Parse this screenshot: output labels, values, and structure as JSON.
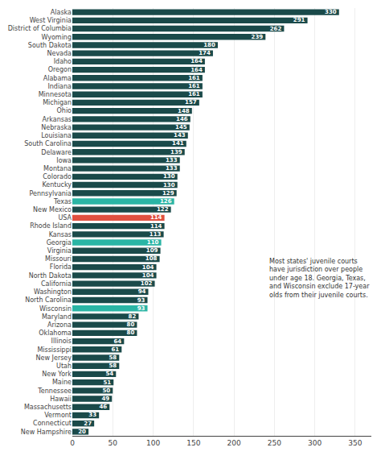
{
  "chart_data": {
    "type": "bar",
    "orientation": "horizontal",
    "categories": [
      "Alaska",
      "West Virginia",
      "District of Columbia",
      "Wyoming",
      "South Dakota",
      "Nevada",
      "Idaho",
      "Oregon",
      "Alabama",
      "Indiana",
      "Minnesota",
      "Michigan",
      "Ohio",
      "Arkansas",
      "Nebraska",
      "Louisiana",
      "South Carolina",
      "Delaware",
      "Iowa",
      "Montana",
      "Colorado",
      "Kentucky",
      "Pennsylvania",
      "Texas",
      "New Mexico",
      "USA",
      "Rhode Island",
      "Kansas",
      "Georgia",
      "Virginia",
      "Missouri",
      "Florida",
      "North Dakota",
      "California",
      "Washington",
      "North Carolina",
      "Wisconsin",
      "Maryland",
      "Arizona",
      "Oklahoma",
      "Illinois",
      "Mississippi",
      "New Jersey",
      "Utah",
      "New York",
      "Maine",
      "Tennessee",
      "Hawaii",
      "Massachusetts",
      "Vermont",
      "Connecticut",
      "New Hampshire"
    ],
    "values": [
      330,
      291,
      262,
      239,
      180,
      174,
      164,
      164,
      161,
      161,
      161,
      157,
      148,
      146,
      145,
      143,
      141,
      139,
      133,
      133,
      130,
      130,
      129,
      126,
      122,
      114,
      114,
      113,
      110,
      109,
      108,
      104,
      104,
      102,
      94,
      93,
      93,
      82,
      80,
      80,
      64,
      61,
      58,
      58,
      54,
      51,
      50,
      49,
      46,
      33,
      27,
      20
    ],
    "colors": [
      "#1a4a4a",
      "#1a4a4a",
      "#1a4a4a",
      "#1a4a4a",
      "#1a4a4a",
      "#1a4a4a",
      "#1a4a4a",
      "#1a4a4a",
      "#1a4a4a",
      "#1a4a4a",
      "#1a4a4a",
      "#1a4a4a",
      "#1a4a4a",
      "#1a4a4a",
      "#1a4a4a",
      "#1a4a4a",
      "#1a4a4a",
      "#1a4a4a",
      "#1a4a4a",
      "#1a4a4a",
      "#1a4a4a",
      "#1a4a4a",
      "#1a4a4a",
      "#2ab5a5",
      "#1a4a4a",
      "#e05040",
      "#1a4a4a",
      "#1a4a4a",
      "#2ab5a5",
      "#1a4a4a",
      "#1a4a4a",
      "#1a4a4a",
      "#1a4a4a",
      "#1a4a4a",
      "#1a4a4a",
      "#1a4a4a",
      "#2ab5a5",
      "#1a4a4a",
      "#1a4a4a",
      "#1a4a4a",
      "#1a4a4a",
      "#1a4a4a",
      "#1a4a4a",
      "#1a4a4a",
      "#1a4a4a",
      "#1a4a4a",
      "#1a4a4a",
      "#1a4a4a",
      "#1a4a4a",
      "#1a4a4a",
      "#1a4a4a",
      "#1a4a4a"
    ],
    "xlim": [
      0,
      370
    ],
    "xticks": [
      0,
      50,
      100,
      150,
      200,
      250,
      300,
      350
    ],
    "grid": true,
    "data_labels": true,
    "annotation": "Most states' juvenile courts\nhave jurisdiction over people\nunder age 18. Georgia, Texas,\nand Wisconsin exclude 17-year\nolds from their juvenile courts."
  }
}
